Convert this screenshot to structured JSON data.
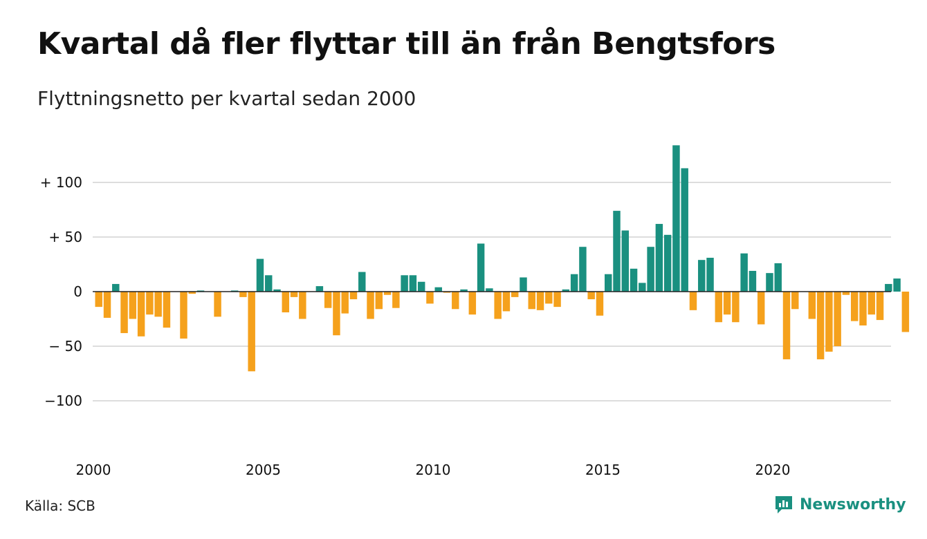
{
  "header": {
    "title": "Kvartal då fler flyttar till än från Bengtsfors",
    "subtitle": "Flyttningsnetto per kvartal sedan 2000"
  },
  "footer": {
    "source": "Källa: SCB",
    "brand": "Newsworthy",
    "brand_icon": "newsworthy-logo-icon"
  },
  "colors": {
    "positive": "#1a9080",
    "negative": "#f5a11c",
    "grid": "#dddddd",
    "zero_line": "#222222"
  },
  "chart_data": {
    "type": "bar",
    "title": "Kvartal då fler flyttar till än från Bengtsfors",
    "subtitle": "Flyttningsnetto per kvartal sedan 2000",
    "xlabel": "",
    "ylabel": "",
    "ylim": [
      -140,
      140
    ],
    "grid": true,
    "legend": "none",
    "y_ticks": [
      {
        "value": 100,
        "label": "+ 100"
      },
      {
        "value": 50,
        "label": "+  50"
      },
      {
        "value": 0,
        "label": "0"
      },
      {
        "value": -50,
        "label": "− 50"
      },
      {
        "value": -100,
        "label": "−100"
      }
    ],
    "x_ticks": [
      {
        "year": 2000,
        "label": "2000"
      },
      {
        "year": 2005,
        "label": "2005"
      },
      {
        "year": 2010,
        "label": "2010"
      },
      {
        "year": 2015,
        "label": "2015"
      },
      {
        "year": 2020,
        "label": "2020"
      }
    ],
    "series": [
      {
        "categories": [
          "2000 K1",
          "2000 K2",
          "2000 K3",
          "2000 K4",
          "2001 K1",
          "2001 K2",
          "2001 K3",
          "2001 K4",
          "2002 K1",
          "2002 K2",
          "2002 K3",
          "2002 K4",
          "2003 K1",
          "2003 K2",
          "2003 K3",
          "2003 K4",
          "2004 K1",
          "2004 K2",
          "2004 K3",
          "2004 K4",
          "2005 K1",
          "2005 K2",
          "2005 K3",
          "2005 K4",
          "2006 K1",
          "2006 K2",
          "2006 K3",
          "2006 K4",
          "2007 K1",
          "2007 K2",
          "2007 K3",
          "2007 K4",
          "2008 K1",
          "2008 K2",
          "2008 K3",
          "2008 K4",
          "2009 K1",
          "2009 K2",
          "2009 K3",
          "2009 K4",
          "2010 K1",
          "2010 K2",
          "2010 K3",
          "2010 K4",
          "2011 K1",
          "2011 K2",
          "2011 K3",
          "2011 K4",
          "2012 K1",
          "2012 K2",
          "2012 K3",
          "2012 K4",
          "2013 K1",
          "2013 K2",
          "2013 K3",
          "2013 K4",
          "2014 K1",
          "2014 K2",
          "2014 K3",
          "2014 K4",
          "2015 K1",
          "2015 K2",
          "2015 K3",
          "2015 K4",
          "2016 K1",
          "2016 K2",
          "2016 K3",
          "2016 K4",
          "2017 K1",
          "2017 K2",
          "2017 K3",
          "2017 K4",
          "2018 K1",
          "2018 K2",
          "2018 K3",
          "2018 K4",
          "2019 K1",
          "2019 K2",
          "2019 K3",
          "2019 K4",
          "2020 K1",
          "2020 K2",
          "2020 K3",
          "2020 K4",
          "2021 K1",
          "2021 K2",
          "2021 K3",
          "2021 K4",
          "2022 K1",
          "2022 K2",
          "2022 K3",
          "2022 K4",
          "2023 K1",
          "2023 K2",
          "2023 K3",
          "2023 K4"
        ],
        "values": [
          -14,
          -24,
          7,
          -38,
          -25,
          -41,
          -21,
          -23,
          -33,
          0,
          -43,
          -2,
          1,
          0,
          -23,
          0,
          1,
          -5,
          -73,
          30,
          15,
          2,
          -19,
          -5,
          -25,
          0,
          5,
          -15,
          -40,
          -20,
          -7,
          18,
          -25,
          -16,
          -3,
          -15,
          15,
          15,
          9,
          -11,
          4,
          -1,
          -16,
          2,
          -21,
          44,
          3,
          -25,
          -18,
          -5,
          13,
          -16,
          -17,
          -11,
          -14,
          2,
          16,
          41,
          -7,
          -22,
          16,
          74,
          56,
          21,
          8,
          41,
          62,
          52,
          134,
          113,
          -17,
          29,
          31,
          -28,
          -21,
          -28,
          35,
          19,
          -30,
          17,
          26,
          -62,
          -16,
          0,
          -25,
          -62,
          -55,
          -50,
          -3,
          -27,
          -31,
          -21,
          -26,
          7,
          12,
          -37
        ]
      }
    ]
  }
}
